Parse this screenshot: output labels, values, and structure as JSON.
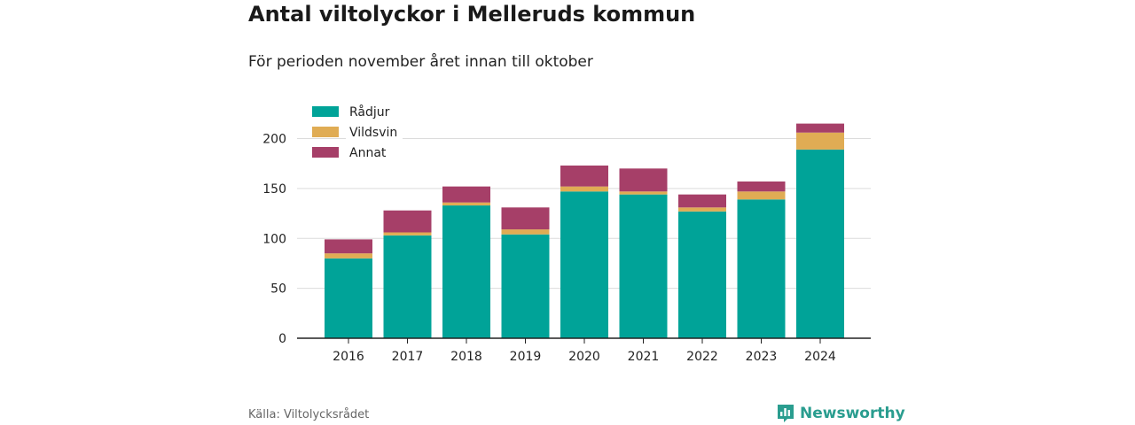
{
  "title": "Antal viltolyckor i Melleruds kommun",
  "subtitle": "För perioden november året innan till oktober",
  "source": "Källa: Viltolycksrådet",
  "brand": "Newsworthy",
  "chart_data": {
    "type": "bar",
    "stacked": true,
    "categories": [
      "2016",
      "2017",
      "2018",
      "2019",
      "2020",
      "2021",
      "2022",
      "2023",
      "2024"
    ],
    "series": [
      {
        "name": "Rådjur",
        "color": "#00a398",
        "values": [
          80,
          103,
          133,
          104,
          147,
          144,
          127,
          139,
          189
        ]
      },
      {
        "name": "Vildsvin",
        "color": "#e0ac54",
        "values": [
          5,
          3,
          3,
          5,
          5,
          3,
          4,
          8,
          17
        ]
      },
      {
        "name": "Annat",
        "color": "#a63f68",
        "values": [
          14,
          22,
          16,
          22,
          21,
          23,
          13,
          10,
          9
        ]
      }
    ],
    "ylim": [
      0,
      220
    ],
    "yticks": [
      0,
      50,
      100,
      150,
      200
    ],
    "grid": true,
    "legend": "top-left"
  }
}
